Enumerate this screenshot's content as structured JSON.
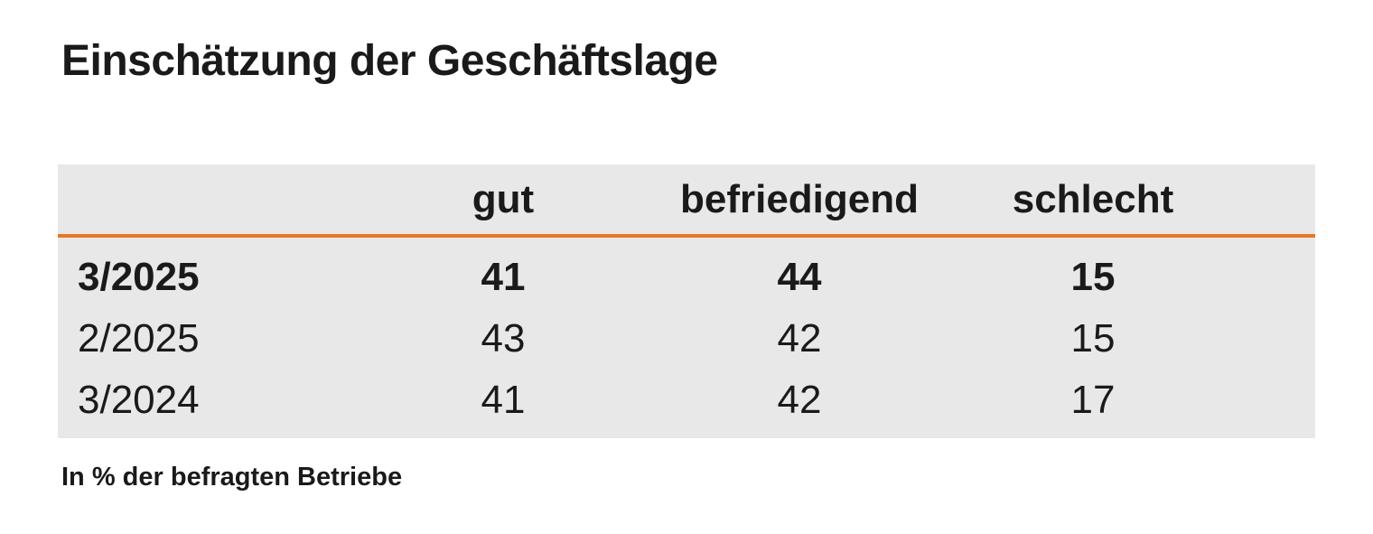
{
  "title": "Einschätzung der Geschäftslage",
  "table": {
    "columns": [
      "gut",
      "befriedigend",
      "schlecht"
    ],
    "rows": [
      [
        "3/2025",
        41,
        44,
        15
      ],
      [
        "2/2025",
        43,
        42,
        15
      ],
      [
        "3/2024",
        41,
        42,
        17
      ]
    ]
  },
  "footnote": "In % der befragten Betriebe"
}
